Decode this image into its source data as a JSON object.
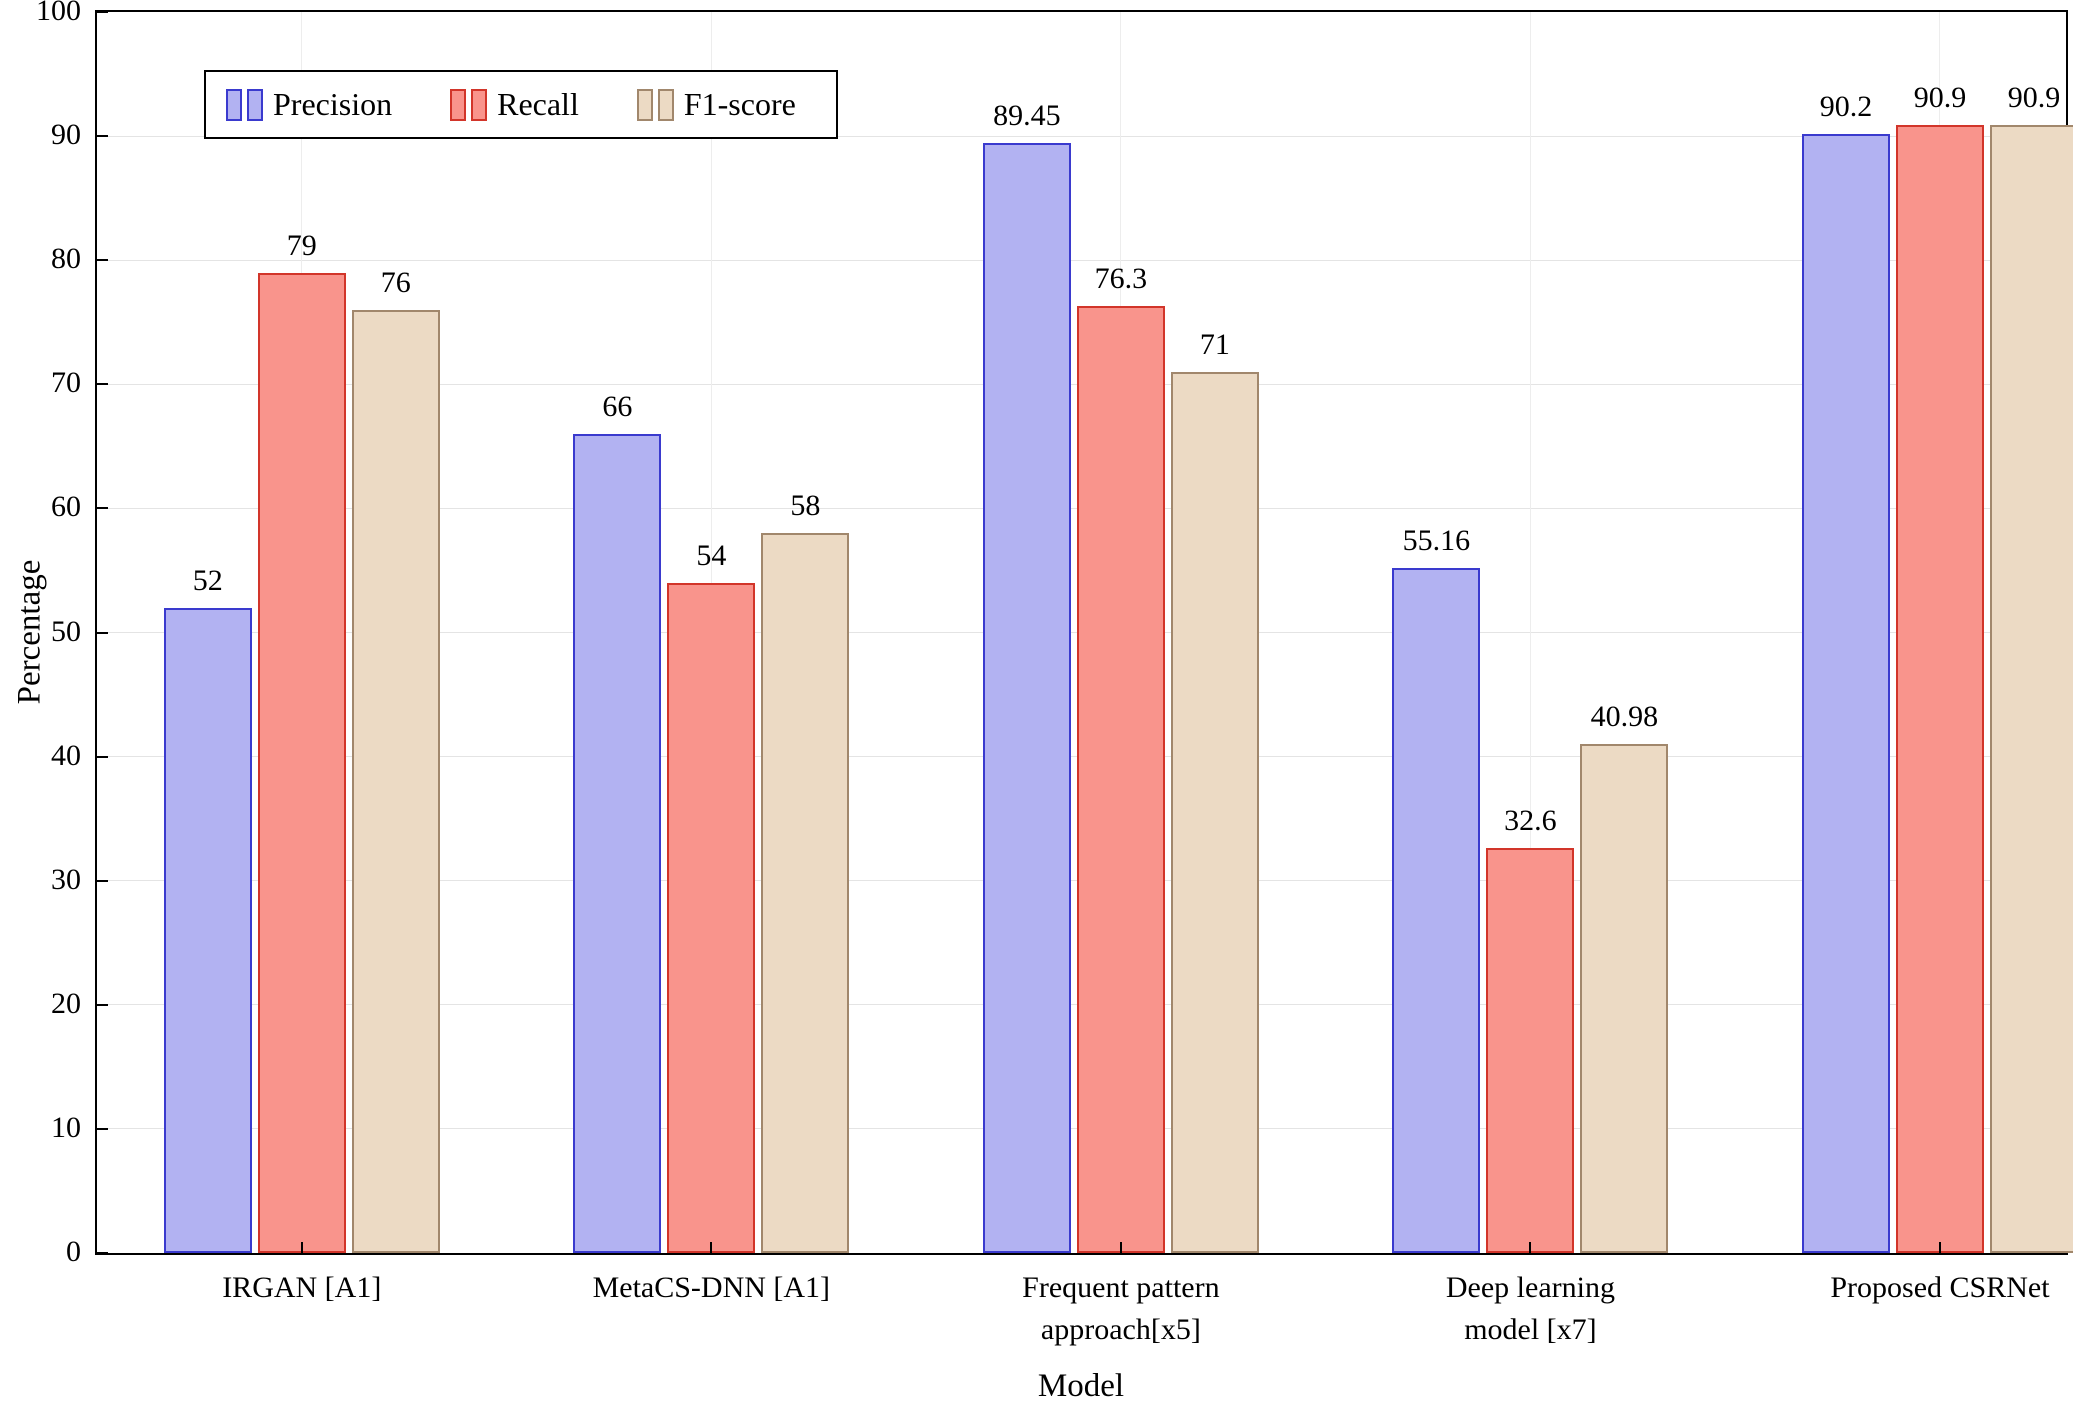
{
  "figure": {
    "background": "#ffffff",
    "axis_color": "#000000",
    "grid_color": "#e4e4e4"
  },
  "chart_data": {
    "type": "bar",
    "title": "",
    "xlabel": "Model",
    "ylabel": "Percentage",
    "ylim": [
      0,
      100
    ],
    "yticks": [
      0,
      10,
      20,
      30,
      40,
      50,
      60,
      70,
      80,
      90,
      100
    ],
    "grid": true,
    "legend_position": "top-left",
    "categories": [
      "IRGAN [A1]",
      "MetaCS-DNN [A1]",
      "Frequent pattern\napproach[x5]",
      "Deep learning\nmodel [x7]",
      "Proposed CSRNet"
    ],
    "series": [
      {
        "name": "Precision",
        "fill": "#b2b2f2",
        "stroke": "#3a3ace",
        "values": [
          52,
          66,
          89.45,
          55.16,
          90.2
        ],
        "labels": [
          "52",
          "66",
          "89.45",
          "55.16",
          "90.2"
        ]
      },
      {
        "name": "Recall",
        "fill": "#f9948c",
        "stroke": "#d2352a",
        "values": [
          79,
          54,
          76.3,
          32.6,
          90.9
        ],
        "labels": [
          "79",
          "54",
          "76.3",
          "32.6",
          "90.9"
        ]
      },
      {
        "name": "F1-score",
        "fill": "#ecdac4",
        "stroke": "#a1876c",
        "values": [
          76,
          58,
          71,
          40.98,
          90.9
        ],
        "labels": [
          "76",
          "58",
          "71",
          "40.98",
          "90.9"
        ]
      }
    ]
  }
}
